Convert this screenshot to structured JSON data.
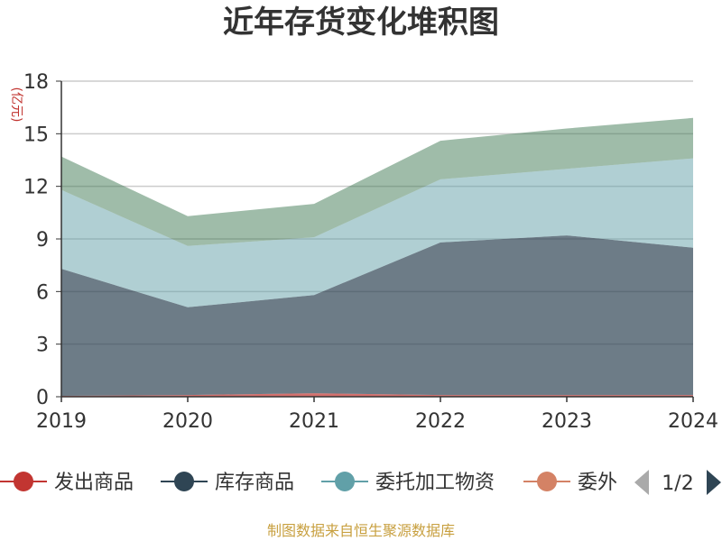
{
  "chart_data": {
    "type": "area",
    "stacked": true,
    "title": "近年存货变化堆积图",
    "ylabel": "(亿元)",
    "categories": [
      "2019",
      "2020",
      "2021",
      "2022",
      "2023",
      "2024"
    ],
    "ylim": [
      0,
      18
    ],
    "yticks": [
      0,
      3,
      6,
      9,
      12,
      15,
      18
    ],
    "grid": true,
    "series": [
      {
        "name": "发出商品",
        "color": "#c23531",
        "values": [
          0.05,
          0.1,
          0.2,
          0.1,
          0.1,
          0.1
        ]
      },
      {
        "name": "库存商品",
        "color": "#2f4554",
        "values": [
          7.25,
          5.0,
          5.6,
          8.7,
          9.1,
          8.4
        ]
      },
      {
        "name": "委托加工物资",
        "color": "#61a0a8",
        "values": [
          4.5,
          3.5,
          3.3,
          3.6,
          3.8,
          5.1
        ]
      },
      {
        "name": "委外",
        "color": "#d48265",
        "values": [
          1.9,
          1.7,
          1.9,
          2.2,
          2.3,
          2.3
        ]
      }
    ],
    "legend": {
      "placement": "bottom",
      "visible": [
        "发出商品",
        "库存商品",
        "委托加工物资",
        "委外"
      ],
      "page": "1/2"
    }
  },
  "source": "制图数据来自恒生聚源数据库"
}
